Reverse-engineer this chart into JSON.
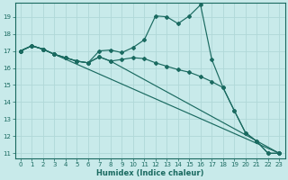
{
  "xlabel": "Humidex (Indice chaleur)",
  "bg_color": "#c8eaea",
  "grid_color": "#b0d8d8",
  "line_color": "#1a6a60",
  "xlim": [
    -0.5,
    23.5
  ],
  "ylim": [
    10.7,
    19.8
  ],
  "yticks": [
    11,
    12,
    13,
    14,
    15,
    16,
    17,
    18,
    19
  ],
  "xticks": [
    0,
    1,
    2,
    3,
    4,
    5,
    6,
    7,
    8,
    9,
    10,
    11,
    12,
    13,
    14,
    15,
    16,
    17,
    18,
    19,
    20,
    21,
    22,
    23
  ],
  "lines": [
    {
      "x": [
        0,
        1,
        2,
        3,
        4,
        5,
        6,
        7,
        8,
        9,
        10,
        11,
        12,
        13,
        14,
        15,
        16,
        17,
        18,
        19,
        20,
        21,
        22,
        23
      ],
      "y": [
        17.0,
        17.3,
        17.1,
        16.8,
        16.6,
        16.4,
        16.3,
        17.0,
        17.05,
        16.9,
        17.2,
        17.65,
        19.05,
        19.0,
        18.6,
        19.05,
        19.7,
        16.5,
        14.85,
        13.5,
        12.2,
        11.7,
        11.0,
        11.0
      ]
    },
    {
      "x": [
        0,
        1,
        2,
        3,
        23
      ],
      "y": [
        17.0,
        17.3,
        17.1,
        16.8,
        11.0
      ]
    },
    {
      "x": [
        0,
        1,
        2,
        3,
        4,
        5,
        6,
        7,
        8,
        23
      ],
      "y": [
        17.0,
        17.3,
        17.1,
        16.8,
        16.6,
        16.4,
        16.3,
        16.65,
        16.4,
        11.0
      ]
    },
    {
      "x": [
        0,
        1,
        2,
        3,
        4,
        5,
        6,
        7,
        8,
        9,
        10,
        11,
        12,
        13,
        14,
        15,
        16,
        17,
        18,
        19,
        20,
        21,
        22,
        23
      ],
      "y": [
        17.0,
        17.3,
        17.1,
        16.8,
        16.6,
        16.4,
        16.3,
        16.65,
        16.4,
        16.5,
        16.6,
        16.55,
        16.3,
        16.1,
        15.9,
        15.75,
        15.5,
        15.2,
        14.85,
        13.5,
        12.2,
        11.7,
        11.0,
        11.0
      ]
    }
  ]
}
